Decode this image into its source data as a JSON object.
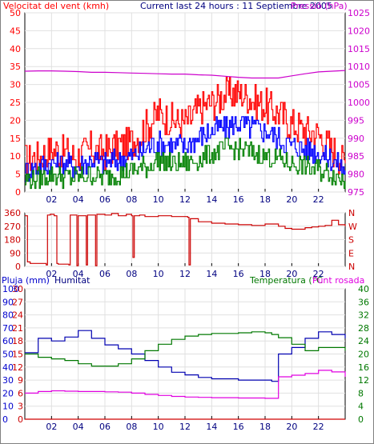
{
  "header": {
    "left_title": "Velocitat del vent (kmh)",
    "center_title": "Current last 24 hours : 11 Septiembre 2005",
    "right_title": "Pressió (hPa)"
  },
  "colors": {
    "wind": "#ff0000",
    "gust": "#ff0000",
    "speed": "#0000ff",
    "min": "#008000",
    "pressure": "#cc00cc",
    "direction": "#cc0000",
    "humidity": "#0000b0",
    "temperature": "#007800",
    "dewpoint": "#e000e0",
    "rain": "#d00000",
    "grid": "#e0e0e0",
    "axis": "#000000"
  },
  "time_axis": {
    "ticks": [
      "02",
      "04",
      "06",
      "08",
      "10",
      "12",
      "14",
      "16",
      "18",
      "20",
      "22"
    ]
  },
  "panels": {
    "wind": {
      "left_ticks": [
        "0",
        "5",
        "10",
        "15",
        "20",
        "25",
        "30",
        "35",
        "40",
        "45",
        "50"
      ],
      "right_ticks": [
        "975",
        "980",
        "985",
        "990",
        "995",
        "1000",
        "1005",
        "1010",
        "1015",
        "1020",
        "1025"
      ]
    },
    "direction": {
      "left_ticks": [
        "360",
        "270",
        "180",
        "90",
        "0"
      ],
      "right_ticks": [
        "N",
        "W",
        "S",
        "E",
        "N"
      ]
    },
    "climate": {
      "label_rain": "Pluja (mm)",
      "label_humidity": "Humitat",
      "label_temperature": "Temperatura (°C",
      "label_dewpoint": "Punt rosada",
      "rain_ticks": [
        "0",
        "3",
        "6",
        "9",
        "12",
        "15",
        "18",
        "21",
        "24",
        "27",
        "30"
      ],
      "humidity_ticks": [
        "0",
        "10",
        "20",
        "30",
        "40",
        "50",
        "60",
        "70",
        "80",
        "90",
        "100"
      ],
      "temp_ticks": [
        "0",
        "4",
        "8",
        "12",
        "16",
        "20",
        "24",
        "28",
        "32",
        "36",
        "40"
      ]
    }
  },
  "chart_data": [
    {
      "type": "line",
      "title": "Current last 24 hours : 11 Septiembre 2005",
      "ylabel": "Velocitat del vent (kmh)",
      "y2label": "Pressió (hPa)",
      "ylim": [
        0,
        50
      ],
      "y2lim": [
        975,
        1025
      ],
      "x": [
        0,
        1,
        2,
        3,
        4,
        5,
        6,
        7,
        8,
        9,
        10,
        11,
        12,
        13,
        14,
        15,
        16,
        17,
        18,
        19,
        20,
        21,
        22,
        23,
        24
      ],
      "series": [
        {
          "name": "",
          "role": "gust",
          "values": [
            9,
            10,
            12,
            11,
            10,
            12,
            11,
            13,
            14,
            18,
            22,
            20,
            19,
            23,
            25,
            27,
            28,
            26,
            24,
            22,
            19,
            17,
            16,
            12,
            8
          ]
        },
        {
          "name": "",
          "role": "average",
          "values": [
            6,
            7,
            8,
            8,
            7,
            9,
            8,
            9,
            10,
            12,
            14,
            13,
            13,
            15,
            17,
            18,
            19,
            18,
            17,
            15,
            13,
            12,
            11,
            9,
            6
          ]
        },
        {
          "name": "",
          "role": "minimum",
          "values": [
            3,
            4,
            5,
            4,
            4,
            5,
            4,
            5,
            6,
            7,
            9,
            8,
            8,
            9,
            11,
            12,
            12,
            11,
            10,
            9,
            8,
            7,
            6,
            5,
            3
          ]
        },
        {
          "name": "",
          "role": "pressure",
          "values": [
            1008.7,
            1008.8,
            1008.8,
            1008.7,
            1008.6,
            1008.4,
            1008.4,
            1008.3,
            1008.2,
            1008.1,
            1008.0,
            1007.9,
            1007.9,
            1007.7,
            1007.6,
            1007.3,
            1007.0,
            1006.8,
            1006.8,
            1006.8,
            1007.4,
            1008.0,
            1008.5,
            1008.7,
            1008.9
          ]
        }
      ]
    },
    {
      "type": "line",
      "ylabel": "",
      "ylim": [
        0,
        360
      ],
      "x": [
        0,
        0.2,
        0.4,
        1.6,
        1.7,
        1.9,
        2.2,
        2.4,
        2.5,
        3.3,
        3.4,
        3.9,
        4.0,
        4.6,
        4.7,
        5.3,
        5.4,
        6.0,
        6.5,
        7.0,
        7.6,
        8.0,
        8.1,
        8.2,
        8.6,
        9.0,
        10.0,
        11.0,
        12.2,
        12.3,
        12.4,
        13.0,
        14.0,
        15.0,
        16.0,
        17.0,
        18.0,
        19.0,
        19.5,
        20.0,
        21.0,
        21.5,
        22.0,
        22.5,
        23.0,
        23.5,
        24.0
      ],
      "series": [
        {
          "name": "",
          "role": "direction",
          "values": [
            340,
            30,
            20,
            10,
            345,
            350,
            340,
            20,
            15,
            10,
            345,
            5,
            340,
            10,
            345,
            5,
            350,
            345,
            355,
            340,
            350,
            340,
            60,
            340,
            345,
            335,
            340,
            335,
            330,
            10,
            320,
            300,
            290,
            285,
            280,
            275,
            285,
            270,
            255,
            250,
            260,
            265,
            270,
            275,
            310,
            280,
            270
          ]
        }
      ]
    },
    {
      "type": "line",
      "ylabel": "Pluja (mm)",
      "y2label": "Temperatura (°C",
      "ylim": [
        0,
        100
      ],
      "y2lim": [
        0,
        40
      ],
      "x": [
        0,
        1,
        2,
        3,
        4,
        5,
        6,
        7,
        8,
        9,
        10,
        11,
        12,
        13,
        14,
        15,
        16,
        17,
        18,
        18.5,
        19,
        20,
        21,
        22,
        23,
        24
      ],
      "series": [
        {
          "name": "Humitat",
          "role": "humidity",
          "values": [
            51,
            62,
            60,
            63,
            68,
            62,
            57,
            54,
            50,
            45,
            40,
            36,
            34,
            32,
            31,
            31,
            30,
            30,
            30,
            29,
            50,
            55,
            62,
            67,
            65,
            62
          ]
        },
        {
          "name": "Temperatura (°C",
          "role": "temperature",
          "values": [
            20,
            19,
            18.5,
            18,
            17,
            16.3,
            16.3,
            17,
            18.5,
            21,
            23,
            24.5,
            25.5,
            26,
            26.3,
            26.3,
            26.5,
            26.8,
            26.5,
            26,
            25,
            23,
            21,
            22,
            22,
            21
          ]
        },
        {
          "name": "Punt rosada",
          "role": "dewpoint",
          "values": [
            8,
            8.5,
            8.7,
            8.6,
            8.5,
            8.5,
            8.4,
            8.3,
            8,
            7.6,
            7.3,
            7,
            6.8,
            6.7,
            6.6,
            6.6,
            6.5,
            6.5,
            6.4,
            6.4,
            13,
            13.5,
            14,
            15,
            14.5,
            13
          ]
        },
        {
          "name": "Pluja (mm)",
          "role": "rain",
          "values": [
            0,
            0,
            0,
            0,
            0,
            0,
            0,
            0,
            0,
            0,
            0,
            0,
            0,
            0,
            0,
            0,
            0,
            0,
            0,
            0,
            0,
            0,
            0,
            0,
            0,
            0
          ]
        }
      ]
    }
  ]
}
